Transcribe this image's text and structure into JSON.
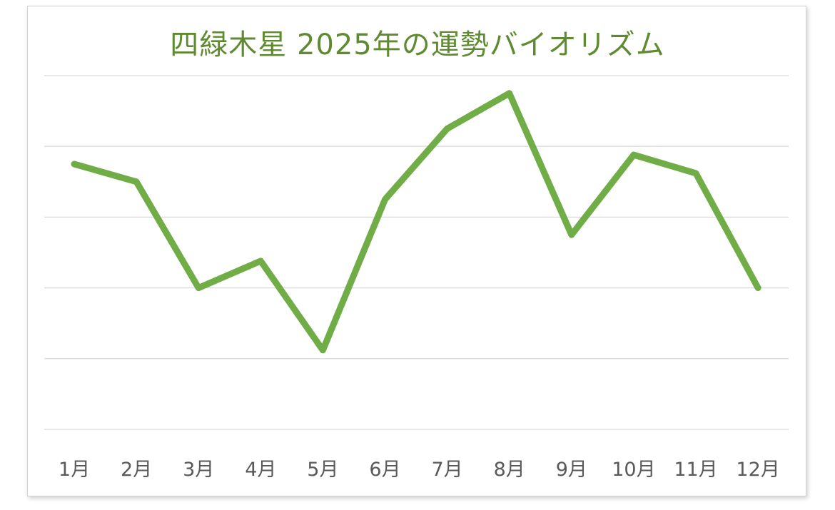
{
  "chart_data": {
    "type": "line",
    "title": "四緑木星  2025年の運勢バイオリズム",
    "categories": [
      "1月",
      "2月",
      "3月",
      "4月",
      "5月",
      "6月",
      "7月",
      "8月",
      "9月",
      "10月",
      "11月",
      "12月"
    ],
    "series": [
      {
        "values": [
          3.75,
          3.5,
          2.0,
          2.38,
          1.12,
          3.25,
          4.25,
          4.75,
          2.75,
          3.88,
          3.62,
          2.0
        ],
        "color": "#70ad47"
      }
    ],
    "ylim": [
      0,
      5
    ],
    "grid": true,
    "legend": "none",
    "y_tick_labels": "hidden"
  }
}
